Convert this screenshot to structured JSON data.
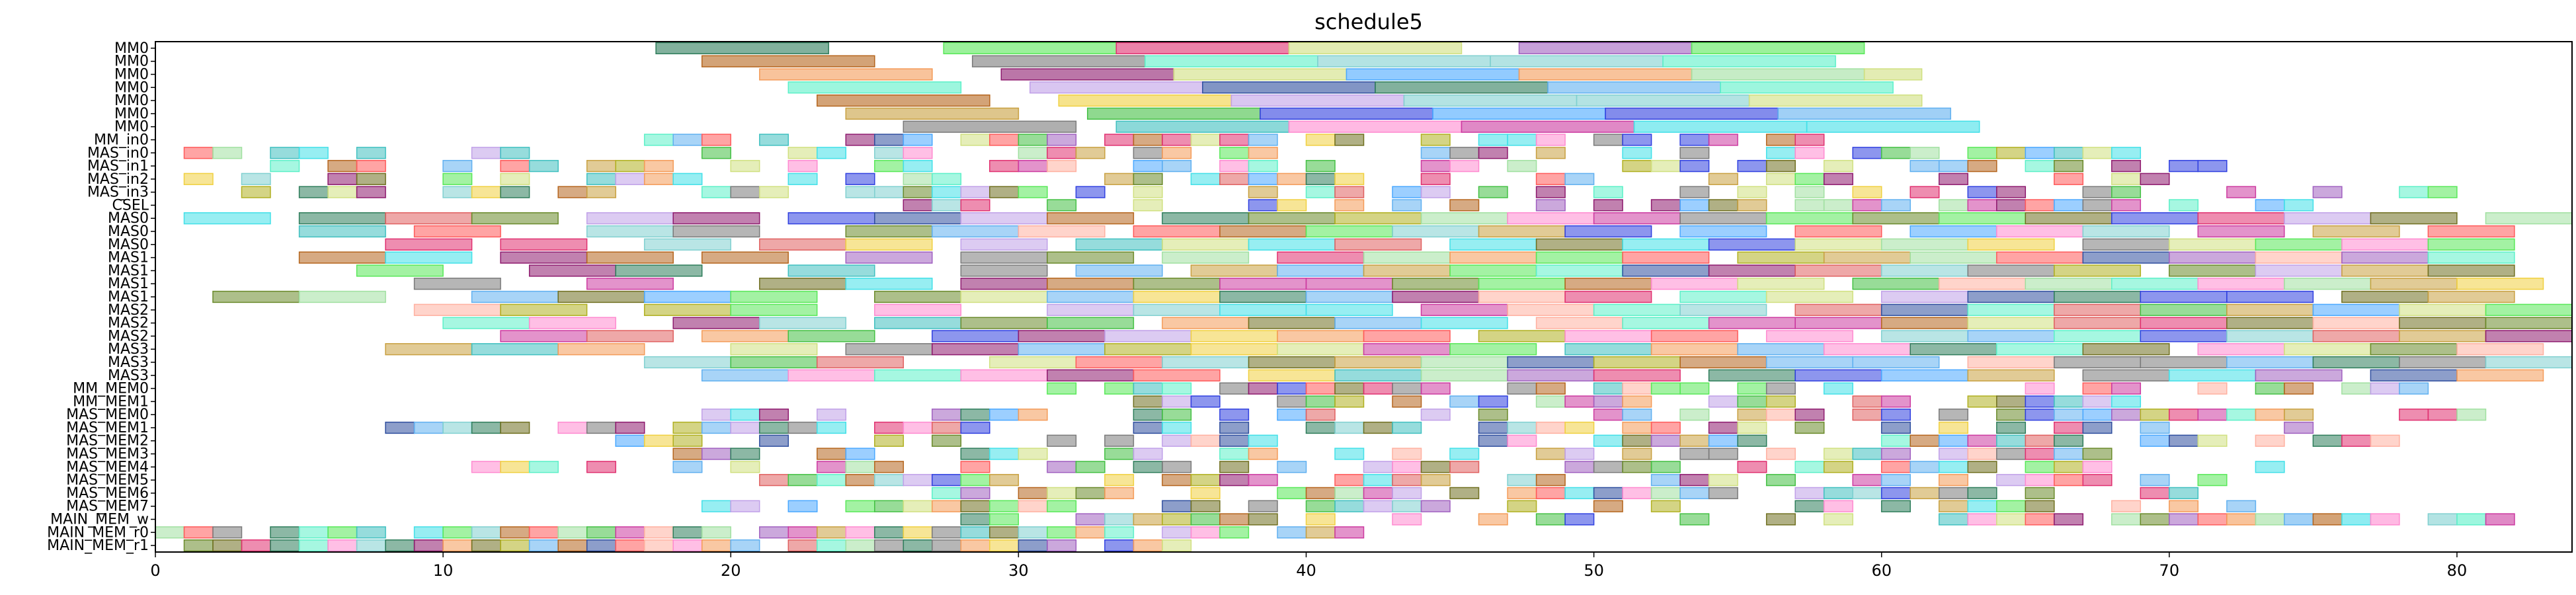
{
  "chart_data": {
    "type": "gantt",
    "title": "schedule5",
    "xlim": [
      0,
      84
    ],
    "x_ticks": [
      "0",
      "10",
      "20",
      "30",
      "40",
      "50",
      "60",
      "70",
      "80"
    ],
    "rows": [
      "MM0",
      "MM0",
      "MM0",
      "MM0",
      "MM0",
      "MM0",
      "MM0",
      "MM_in0",
      "MAS_in0",
      "MAS_in1",
      "MAS_in2",
      "MAS_in3",
      "CSEL",
      "MAS0",
      "MAS0",
      "MAS0",
      "MAS1",
      "MAS1",
      "MAS1",
      "MAS1",
      "MAS2",
      "MAS2",
      "MAS2",
      "MAS3",
      "MAS3",
      "MAS3",
      "MM_MEM0",
      "MM_MEM1",
      "MAS_MEM0",
      "MAS_MEM1",
      "MAS_MEM2",
      "MAS_MEM3",
      "MAS_MEM4",
      "MAS_MEM5",
      "MAS_MEM6",
      "MAS_MEM7",
      "MAIN_MEM_w",
      "MAIN_MEM_r0",
      "MAIN_MEM_r1"
    ],
    "palette": [
      "#2e7d5b",
      "#b5651d",
      "#f49b58",
      "#5cf0c8",
      "#c8a040",
      "#7a7a7a",
      "#42e0e8",
      "#4aa8ff",
      "#8e1a6e",
      "#ff5a5a",
      "#cc3aa0",
      "#58e858",
      "#c0a0e8",
      "#2f4f9f",
      "#b0b020",
      "#ff8ad0",
      "#44c044",
      "#e06060",
      "#40c0c0",
      "#a060c0",
      "#f0d040",
      "#3040e0",
      "#60b0f0",
      "#d0e080",
      "#a0e0a0",
      "#e03070",
      "#707020",
      "#ffb0a0",
      "#80d0d0",
      "#6a8a2a"
    ],
    "bars": {
      "0": [
        [
          17.4,
          23.4,
          0
        ],
        [
          27.4,
          33.4,
          11
        ],
        [
          33.4,
          39.4,
          25
        ],
        [
          39.4,
          45.4,
          23
        ],
        [
          47.4,
          53.4,
          19
        ],
        [
          53.4,
          59.4,
          11
        ]
      ],
      "1": [
        [
          19.0,
          25.0,
          1
        ],
        [
          28.4,
          34.4,
          5
        ],
        [
          34.4,
          40.4,
          3
        ],
        [
          40.4,
          46.4,
          28
        ],
        [
          46.4,
          52.4,
          28
        ],
        [
          52.4,
          58.4,
          3
        ]
      ],
      "2": [
        [
          21.0,
          27.0,
          2
        ],
        [
          29.4,
          35.4,
          8
        ],
        [
          35.4,
          41.4,
          23
        ],
        [
          41.4,
          47.4,
          7
        ],
        [
          47.4,
          53.4,
          2
        ],
        [
          53.4,
          59.4,
          24
        ],
        [
          59.4,
          61.4,
          23
        ]
      ],
      "3": [
        [
          22.0,
          28.0,
          3
        ],
        [
          30.4,
          36.4,
          12
        ],
        [
          36.4,
          42.4,
          13
        ],
        [
          42.4,
          48.4,
          0
        ],
        [
          48.4,
          54.4,
          22
        ],
        [
          54.4,
          60.4,
          3
        ]
      ],
      "4": [
        [
          23.0,
          29.0,
          1
        ],
        [
          31.4,
          37.4,
          20
        ],
        [
          37.4,
          43.4,
          12
        ],
        [
          43.4,
          49.4,
          28
        ],
        [
          49.4,
          55.4,
          28
        ],
        [
          55.4,
          61.4,
          23
        ]
      ],
      "5": [
        [
          24.0,
          30.0,
          4
        ],
        [
          32.4,
          38.4,
          16
        ],
        [
          38.4,
          44.4,
          21
        ],
        [
          44.4,
          50.4,
          7
        ],
        [
          50.4,
          56.4,
          21
        ],
        [
          56.4,
          62.4,
          22
        ]
      ],
      "6": [
        [
          26.0,
          32.0,
          5
        ],
        [
          33.4,
          39.4,
          18
        ],
        [
          39.4,
          45.4,
          15
        ],
        [
          45.4,
          51.4,
          10
        ],
        [
          51.4,
          57.4,
          6
        ],
        [
          57.4,
          63.4,
          6
        ]
      ]
    },
    "dense": [
      {
        "row": 7,
        "start": 16,
        "end": 58,
        "seed": 11,
        "fill": 0.7
      },
      {
        "row": 8,
        "start": 0,
        "end": 70,
        "seed": 12,
        "fill": 0.55
      },
      {
        "row": 9,
        "start": 2,
        "end": 72,
        "seed": 13,
        "fill": 0.55
      },
      {
        "row": 10,
        "start": 1,
        "end": 75,
        "seed": 14,
        "fill": 0.55
      },
      {
        "row": 11,
        "start": 3,
        "end": 80,
        "seed": 15,
        "fill": 0.6
      },
      {
        "row": 12,
        "start": 26,
        "end": 76,
        "seed": 16,
        "fill": 0.6
      },
      {
        "row": 26,
        "start": 30,
        "end": 80,
        "seed": 17,
        "fill": 0.6
      },
      {
        "row": 27,
        "start": 30,
        "end": 70,
        "seed": 18,
        "fill": 0.6
      },
      {
        "row": 28,
        "start": 15,
        "end": 81,
        "seed": 19,
        "fill": 0.55
      },
      {
        "row": 29,
        "start": 8,
        "end": 75,
        "seed": 20,
        "fill": 0.6
      },
      {
        "row": 30,
        "start": 16,
        "end": 78,
        "seed": 21,
        "fill": 0.6
      },
      {
        "row": 31,
        "start": 18,
        "end": 72,
        "seed": 22,
        "fill": 0.6
      },
      {
        "row": 32,
        "start": 8,
        "end": 74,
        "seed": 23,
        "fill": 0.6
      },
      {
        "row": 33,
        "start": 18,
        "end": 72,
        "seed": 24,
        "fill": 0.6
      },
      {
        "row": 34,
        "start": 26,
        "end": 73,
        "seed": 25,
        "fill": 0.6
      },
      {
        "row": 35,
        "start": 19,
        "end": 73,
        "seed": 26,
        "fill": 0.6
      },
      {
        "row": 36,
        "start": 28,
        "end": 72,
        "seed": 27,
        "fill": 0.6
      },
      {
        "row": 37,
        "start": 0,
        "end": 42,
        "seed": 28,
        "fill": 0.9
      },
      {
        "row": 38,
        "start": 0,
        "end": 36,
        "seed": 29,
        "fill": 0.95
      }
    ],
    "extra": {
      "36": [
        [
          72,
          73,
          2
        ],
        [
          73,
          74,
          24
        ],
        [
          74,
          75,
          22
        ],
        [
          75,
          76,
          1
        ],
        [
          76,
          77,
          6
        ],
        [
          77,
          78,
          15
        ],
        [
          79,
          80,
          28
        ],
        [
          80,
          81,
          3
        ],
        [
          81,
          82,
          10
        ]
      ]
    },
    "long": [
      {
        "row": 13,
        "start": 1,
        "seed": 31
      },
      {
        "row": 14,
        "start": 4,
        "seed": 32
      },
      {
        "row": 15,
        "start": 5,
        "seed": 33
      },
      {
        "row": 16,
        "start": 3,
        "seed": 34
      },
      {
        "row": 17,
        "start": 7,
        "seed": 35
      },
      {
        "row": 18,
        "start": 9,
        "seed": 36
      },
      {
        "row": 19,
        "start": 2,
        "seed": 37
      },
      {
        "row": 20,
        "start": 6,
        "seed": 38
      },
      {
        "row": 21,
        "start": 8,
        "seed": 39
      },
      {
        "row": 22,
        "start": 10,
        "seed": 40
      },
      {
        "row": 23,
        "start": 8,
        "seed": 41
      },
      {
        "row": 24,
        "start": 17,
        "seed": 42
      },
      {
        "row": 25,
        "start": 19,
        "seed": 43
      }
    ]
  }
}
